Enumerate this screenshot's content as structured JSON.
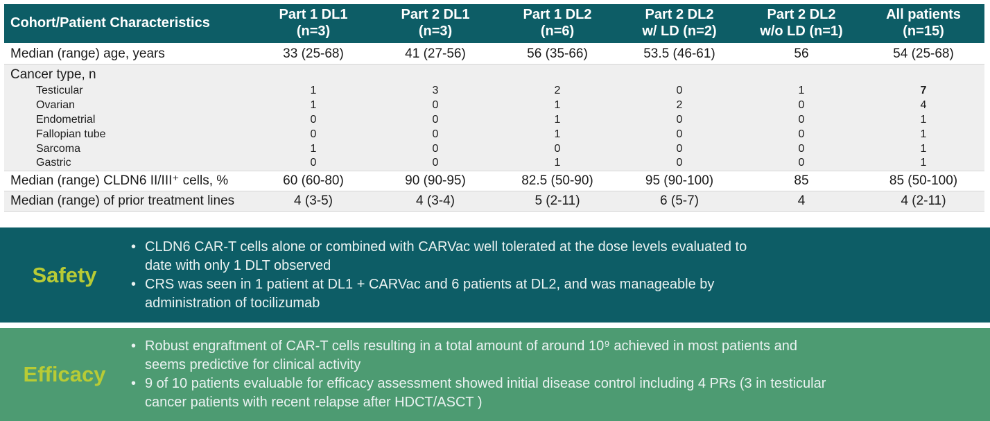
{
  "colors": {
    "teal": "#0D5D66",
    "green": "#4D9B72",
    "label_yellow": "#B8CB35",
    "row_shade": "#EFEFEF",
    "bullet_text": "#EAF2F1"
  },
  "table": {
    "header": [
      "Cohort/Patient Characteristics",
      "Part 1 DL1\n(n=3)",
      "Part 2 DL1\n(n=3)",
      "Part 1 DL2\n(n=6)",
      "Part 2 DL2\nw/ LD (n=2)",
      "Part 2 DL2\nw/o LD (n=1)",
      "All patients\n(n=15)"
    ],
    "rows": [
      {
        "type": "row",
        "shade": false,
        "label": "Median (range) age, years",
        "values": [
          "33 (25-68)",
          "41 (27-56)",
          "56 (35-66)",
          "53.5 (46-61)",
          "56",
          "54 (25-68)"
        ]
      },
      {
        "type": "group",
        "shade": true,
        "label": "Cancer type, n",
        "values": [
          "",
          "",
          "",
          "",
          "",
          ""
        ]
      },
      {
        "type": "sub",
        "shade": true,
        "label": "Testicular",
        "values": [
          "1",
          "3",
          "2",
          "0",
          "1",
          "7"
        ],
        "bold_cols": [
          5
        ]
      },
      {
        "type": "sub",
        "shade": true,
        "label": "Ovarian",
        "values": [
          "1",
          "0",
          "1",
          "2",
          "0",
          "4"
        ]
      },
      {
        "type": "sub",
        "shade": true,
        "label": "Endometrial",
        "values": [
          "0",
          "0",
          "1",
          "0",
          "0",
          "1"
        ]
      },
      {
        "type": "sub",
        "shade": true,
        "label": "Fallopian tube",
        "values": [
          "0",
          "0",
          "1",
          "0",
          "0",
          "1"
        ]
      },
      {
        "type": "sub",
        "shade": true,
        "label": "Sarcoma",
        "values": [
          "1",
          "0",
          "0",
          "0",
          "0",
          "1"
        ]
      },
      {
        "type": "sub",
        "shade": true,
        "label": "Gastric",
        "values": [
          "0",
          "0",
          "1",
          "0",
          "0",
          "1"
        ]
      },
      {
        "type": "row",
        "shade": false,
        "label": "Median (range) CLDN6 II/III⁺ cells, %",
        "values": [
          "60 (60-80)",
          "90 (90-95)",
          "82.5 (50-90)",
          "95 (90-100)",
          "85",
          "85 (50-100)"
        ]
      },
      {
        "type": "row",
        "shade": true,
        "label": "Median (range) of prior treatment lines",
        "values": [
          "4 (3-5)",
          "4 (3-4)",
          "5 (2-11)",
          "6 (5-7)",
          "4",
          "4 (2-11)"
        ]
      }
    ]
  },
  "safety": {
    "label": "Safety",
    "bullets": [
      "CLDN6 CAR-T cells alone or combined with CARVac well tolerated at the dose levels evaluated to date with only 1 DLT observed",
      "CRS was seen in 1 patient at DL1 + CARVac and 6 patients at DL2, and was manageable by administration of tocilizumab"
    ]
  },
  "efficacy": {
    "label": "Efficacy",
    "bullets": [
      "Robust engraftment of CAR-T cells resulting in a total amount of around 10⁹ achieved in most patients and seems predictive for clinical activity",
      "9 of 10 patients evaluable for efficacy assessment showed initial disease control including 4 PRs (3 in testicular cancer patients with recent relapse after HDCT/ASCT )"
    ]
  }
}
